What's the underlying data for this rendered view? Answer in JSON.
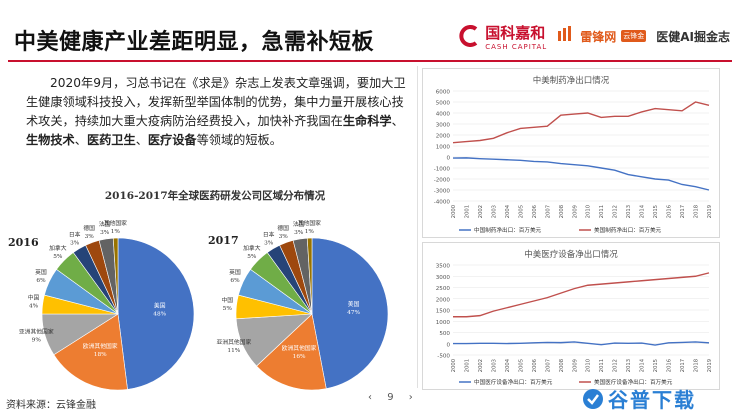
{
  "header": {
    "title": "中美健康产业差距明显，急需补短板",
    "logos": {
      "logo1_main": "国科嘉和",
      "logo1_sub": "CASH CAPITAL",
      "logo2_main": "雷锋网",
      "logo2_badge": "云锋金",
      "logo3_main": "医健AI掘金志"
    },
    "accent_color": "#c8102e"
  },
  "paragraph": {
    "part1": "2020年9月，习总书记在《求是》杂志上发表文章强调，要加大卫生健康领域科技投入，发挥新型举国体制的优势，集中力量开展核心技术攻关，持续加大重大疫病防治经费投入，加快补齐我国在",
    "bold1": "生命科学",
    "sep1": "、",
    "bold2": "生物技术",
    "sep2": "、",
    "bold3": "医药卫生",
    "sep3": "、",
    "bold4": "医疗设备",
    "part2": "等领域的短板。"
  },
  "pie_section": {
    "title": "2016-2017年全球医药研发公司区域分布情况",
    "year_2016": "2016",
    "year_2017": "2017"
  },
  "chart_data": [
    {
      "type": "pie",
      "title": "2016",
      "slices": [
        {
          "label": "美国",
          "value": 48,
          "text": "美国\n48%",
          "color": "#4472c4"
        },
        {
          "label": "欧洲其他国家",
          "value": 18,
          "text": "欧洲其他国家\n18%",
          "color": "#ed7d31"
        },
        {
          "label": "亚洲其他国家",
          "value": 9,
          "text": "亚洲其他国家\n9%",
          "color": "#a5a5a5"
        },
        {
          "label": "中国",
          "value": 4,
          "text": "中国\n4%",
          "color": "#ffc000"
        },
        {
          "label": "英国",
          "value": 6,
          "text": "英国\n6%",
          "color": "#5b9bd5"
        },
        {
          "label": "加拿大",
          "value": 5,
          "text": "加拿大\n5%",
          "color": "#70ad47"
        },
        {
          "label": "日本",
          "value": 3,
          "text": "日本\n3%",
          "color": "#264478"
        },
        {
          "label": "德国",
          "value": 3,
          "text": "德国\n3%",
          "color": "#9e480e"
        },
        {
          "label": "法国",
          "value": 3,
          "text": "法国\n3%",
          "color": "#636363"
        },
        {
          "label": "其他国家",
          "value": 1,
          "text": "其他国家\n1%",
          "color": "#997300"
        }
      ]
    },
    {
      "type": "pie",
      "title": "2017",
      "slices": [
        {
          "label": "美国",
          "value": 47,
          "text": "美国\n47%",
          "color": "#4472c4"
        },
        {
          "label": "欧洲其他国家",
          "value": 16,
          "text": "欧洲其他国家\n16%",
          "color": "#ed7d31"
        },
        {
          "label": "亚洲其他国家",
          "value": 11,
          "text": "亚洲其他国家\n11%",
          "color": "#a5a5a5"
        },
        {
          "label": "中国",
          "value": 5,
          "text": "中国\n5%",
          "color": "#ffc000"
        },
        {
          "label": "英国",
          "value": 6,
          "text": "英国\n6%",
          "color": "#5b9bd5"
        },
        {
          "label": "加拿大",
          "value": 5,
          "text": "加拿大\n5%",
          "color": "#70ad47"
        },
        {
          "label": "日本",
          "value": 3,
          "text": "日本\n3%",
          "color": "#264478"
        },
        {
          "label": "德国",
          "value": 3,
          "text": "德国\n3%",
          "color": "#9e480e"
        },
        {
          "label": "法国",
          "value": 3,
          "text": "法国\n3%",
          "color": "#636363"
        },
        {
          "label": "其他国家",
          "value": 1,
          "text": "其他国家\n1%",
          "color": "#997300"
        }
      ]
    },
    {
      "type": "line",
      "title": "中美制药净出口情况",
      "x": [
        "2000",
        "2001",
        "2002",
        "2003",
        "2004",
        "2005",
        "2006",
        "2007",
        "2008",
        "2009",
        "2010",
        "2011",
        "2012",
        "2013",
        "2014",
        "2015",
        "2016",
        "2017",
        "2018",
        "2019"
      ],
      "ylim": [
        -4000,
        6000
      ],
      "yticks": [
        -4000,
        -3000,
        -2000,
        -1000,
        0,
        1000,
        2000,
        3000,
        4000,
        5000,
        6000
      ],
      "series": [
        {
          "name": "中国制药净出口：百万美元",
          "color": "#4472c4",
          "values": [
            -100,
            -80,
            -150,
            -200,
            -250,
            -300,
            -400,
            -450,
            -600,
            -700,
            -800,
            -1000,
            -1200,
            -1600,
            -1800,
            -2000,
            -2100,
            -2500,
            -2700,
            -3000
          ]
        },
        {
          "name": "美国制药净出口：百万美元",
          "color": "#c0504d",
          "values": [
            1300,
            1400,
            1500,
            1700,
            2200,
            2600,
            2700,
            2800,
            3800,
            3900,
            4000,
            3600,
            3700,
            3700,
            4100,
            4400,
            4300,
            4200,
            5000,
            4700
          ]
        }
      ]
    },
    {
      "type": "line",
      "title": "中美医疗设备净出口情况",
      "x": [
        "2000",
        "2001",
        "2002",
        "2003",
        "2004",
        "2005",
        "2006",
        "2007",
        "2008",
        "2009",
        "2010",
        "2011",
        "2012",
        "2013",
        "2014",
        "2015",
        "2016",
        "2017",
        "2018",
        "2019"
      ],
      "ylim": [
        -500,
        3500
      ],
      "yticks": [
        -500,
        0,
        500,
        1000,
        1500,
        2000,
        2500,
        3000,
        3500
      ],
      "series": [
        {
          "name": "中国医疗设备净出口：百万美元",
          "color": "#4472c4",
          "values": [
            10,
            10,
            20,
            20,
            10,
            20,
            40,
            60,
            50,
            80,
            20,
            -40,
            30,
            20,
            30,
            -60,
            40,
            60,
            80,
            40
          ]
        },
        {
          "name": "美国医疗设备净出口：百万美元",
          "color": "#c0504d",
          "values": [
            1200,
            1200,
            1250,
            1450,
            1600,
            1750,
            1900,
            2050,
            2250,
            2450,
            2600,
            2650,
            2700,
            2750,
            2800,
            2850,
            2900,
            2950,
            3000,
            3150
          ]
        }
      ]
    }
  ],
  "footer": {
    "source": "资料来源：云锋金融",
    "page_prev": "‹",
    "page_number": "9",
    "page_next": "›",
    "watermark": "谷普下载"
  }
}
